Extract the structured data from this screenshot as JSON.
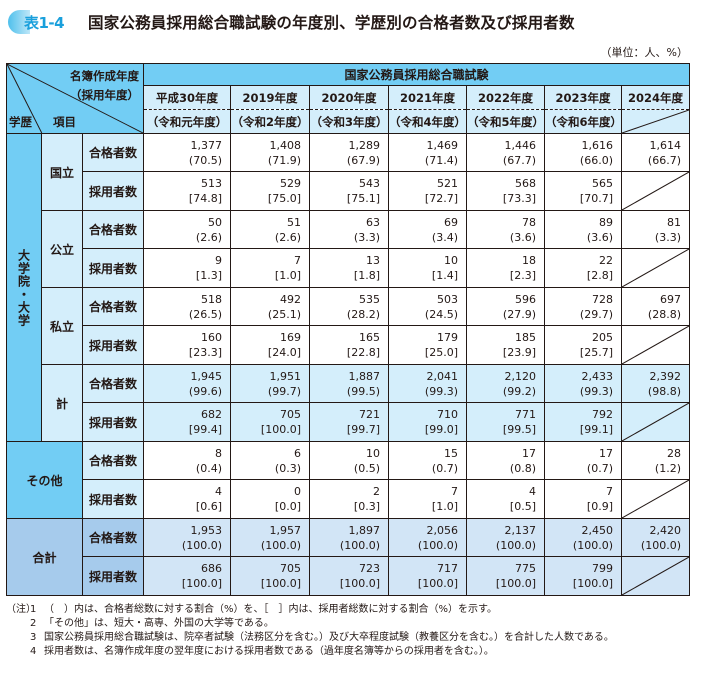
{
  "header": {
    "badge": "表1-4",
    "title": "国家公務員採用総合職試験の年度別、学歴別の合格者数及び採用者数",
    "unit": "（単位：人、%）"
  },
  "colors": {
    "header_dark": "#72cdf4",
    "header_light": "#d4eefb",
    "total_dark": "#a6cbec",
    "total_light": "#d2e5f6",
    "badge_text": "#1aa0dc"
  },
  "table": {
    "corner": {
      "top_line1": "名簿作成年度",
      "top_line2": "（採用年度）",
      "left_label": "学歴",
      "item_label": "項目"
    },
    "group_header": "国家公務員採用総合職試験",
    "years": [
      {
        "year": "平成30年度",
        "hire_year": "（令和元年度）"
      },
      {
        "year": "2019年度",
        "hire_year": "（令和2年度）"
      },
      {
        "year": "2020年度",
        "hire_year": "（令和3年度）"
      },
      {
        "year": "2021年度",
        "hire_year": "（令和4年度）"
      },
      {
        "year": "2022年度",
        "hire_year": "（令和5年度）"
      },
      {
        "year": "2023年度",
        "hire_year": "（令和6年度）"
      },
      {
        "year": "2024年度",
        "hire_year": ""
      }
    ],
    "item_labels": {
      "pass": "合格者数",
      "hire": "採用者数"
    },
    "university_group_label": "大学院・大学",
    "sections": [
      {
        "label": "国立",
        "pass": [
          [
            "1,377",
            "(70.5)"
          ],
          [
            "1,408",
            "(71.9)"
          ],
          [
            "1,289",
            "(67.9)"
          ],
          [
            "1,469",
            "(71.4)"
          ],
          [
            "1,446",
            "(67.7)"
          ],
          [
            "1,616",
            "(66.0)"
          ],
          [
            "1,614",
            "(66.7)"
          ]
        ],
        "hire": [
          [
            "513",
            "[74.8]"
          ],
          [
            "529",
            "[75.0]"
          ],
          [
            "543",
            "[75.1]"
          ],
          [
            "521",
            "[72.7]"
          ],
          [
            "568",
            "[73.3]"
          ],
          [
            "565",
            "[70.7]"
          ]
        ]
      },
      {
        "label": "公立",
        "pass": [
          [
            "50",
            "(2.6)"
          ],
          [
            "51",
            "(2.6)"
          ],
          [
            "63",
            "(3.3)"
          ],
          [
            "69",
            "(3.4)"
          ],
          [
            "78",
            "(3.6)"
          ],
          [
            "89",
            "(3.6)"
          ],
          [
            "81",
            "(3.3)"
          ]
        ],
        "hire": [
          [
            "9",
            "[1.3]"
          ],
          [
            "7",
            "[1.0]"
          ],
          [
            "13",
            "[1.8]"
          ],
          [
            "10",
            "[1.4]"
          ],
          [
            "18",
            "[2.3]"
          ],
          [
            "22",
            "[2.8]"
          ]
        ]
      },
      {
        "label": "私立",
        "pass": [
          [
            "518",
            "(26.5)"
          ],
          [
            "492",
            "(25.1)"
          ],
          [
            "535",
            "(28.2)"
          ],
          [
            "503",
            "(24.5)"
          ],
          [
            "596",
            "(27.9)"
          ],
          [
            "728",
            "(29.7)"
          ],
          [
            "697",
            "(28.8)"
          ]
        ],
        "hire": [
          [
            "160",
            "[23.3]"
          ],
          [
            "169",
            "[24.0]"
          ],
          [
            "165",
            "[22.8]"
          ],
          [
            "179",
            "[25.0]"
          ],
          [
            "185",
            "[23.9]"
          ],
          [
            "205",
            "[25.7]"
          ]
        ]
      },
      {
        "label": "計",
        "pass": [
          [
            "1,945",
            "(99.6)"
          ],
          [
            "1,951",
            "(99.7)"
          ],
          [
            "1,887",
            "(99.5)"
          ],
          [
            "2,041",
            "(99.3)"
          ],
          [
            "2,120",
            "(99.2)"
          ],
          [
            "2,433",
            "(99.3)"
          ],
          [
            "2,392",
            "(98.8)"
          ]
        ],
        "hire": [
          [
            "682",
            "[99.4]"
          ],
          [
            "705",
            "[100.0]"
          ],
          [
            "721",
            "[99.7]"
          ],
          [
            "710",
            "[99.0]"
          ],
          [
            "771",
            "[99.5]"
          ],
          [
            "792",
            "[99.1]"
          ]
        ]
      },
      {
        "label": "その他",
        "pass": [
          [
            "8",
            "(0.4)"
          ],
          [
            "6",
            "(0.3)"
          ],
          [
            "10",
            "(0.5)"
          ],
          [
            "15",
            "(0.7)"
          ],
          [
            "17",
            "(0.8)"
          ],
          [
            "17",
            "(0.7)"
          ],
          [
            "28",
            "(1.2)"
          ]
        ],
        "hire": [
          [
            "4",
            "[0.6]"
          ],
          [
            "0",
            "[0.0]"
          ],
          [
            "2",
            "[0.3]"
          ],
          [
            "7",
            "[1.0]"
          ],
          [
            "4",
            "[0.5]"
          ],
          [
            "7",
            "[0.9]"
          ]
        ]
      },
      {
        "label": "合計",
        "pass": [
          [
            "1,953",
            "(100.0)"
          ],
          [
            "1,957",
            "(100.0)"
          ],
          [
            "1,897",
            "(100.0)"
          ],
          [
            "2,056",
            "(100.0)"
          ],
          [
            "2,137",
            "(100.0)"
          ],
          [
            "2,450",
            "(100.0)"
          ],
          [
            "2,420",
            "(100.0)"
          ]
        ],
        "hire": [
          [
            "686",
            "[100.0]"
          ],
          [
            "705",
            "[100.0]"
          ],
          [
            "723",
            "[100.0]"
          ],
          [
            "717",
            "[100.0]"
          ],
          [
            "775",
            "[100.0]"
          ],
          [
            "799",
            "[100.0]"
          ]
        ]
      }
    ]
  },
  "notes": {
    "prefix": "（注）",
    "items": [
      {
        "num": "1",
        "text": "（　）内は、合格者総数に対する割合（%）を、［　］内は、採用者総数に対する割合（%）を示す。"
      },
      {
        "num": "2",
        "text": "「その他」は、短大・高専、外国の大学等である。"
      },
      {
        "num": "3",
        "text": "国家公務員採用総合職試験は、院卒者試験（法務区分を含む。）及び大卒程度試験（教養区分を含む。）を合計した人数である。"
      },
      {
        "num": "4",
        "text": "採用者数は、名簿作成年度の翌年度における採用者数である（過年度名簿等からの採用者を含む。）。"
      }
    ]
  }
}
